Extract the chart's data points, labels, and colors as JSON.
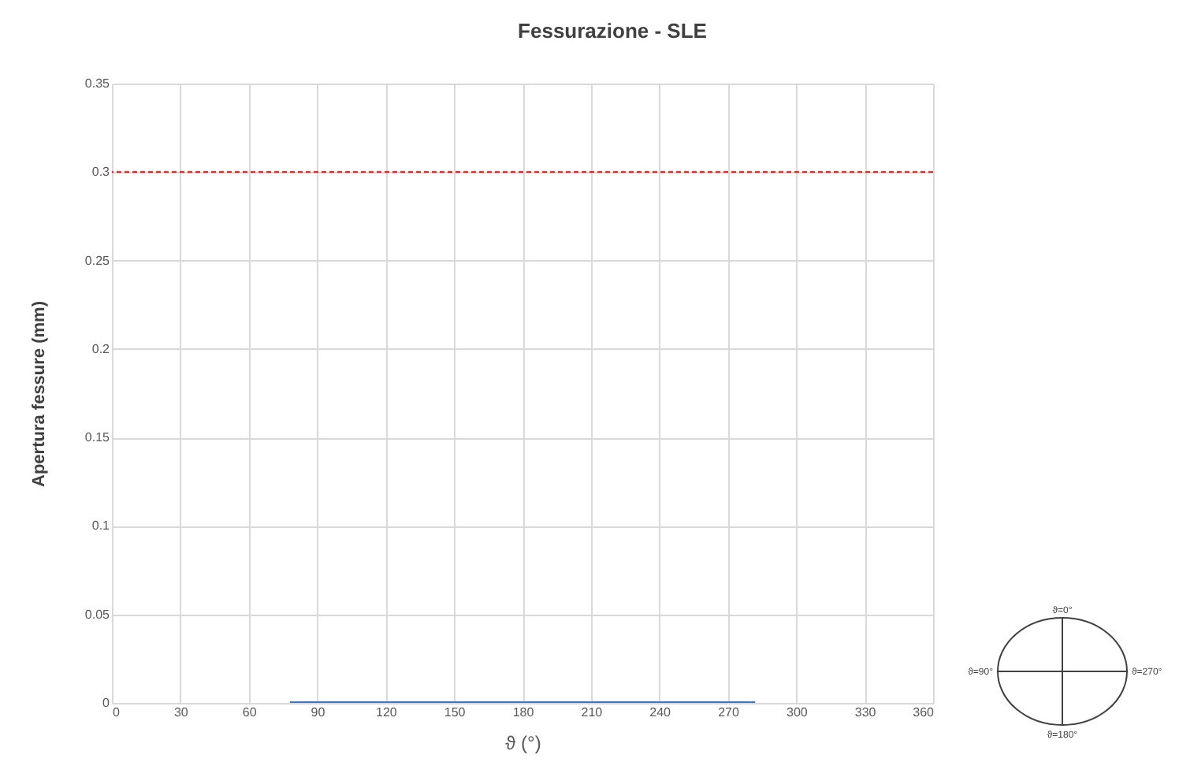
{
  "chart_data": {
    "type": "line",
    "title": "Fessurazione - SLE",
    "xlabel": "ϑ (°)",
    "ylabel": "Apertura fessure (mm)",
    "x": [
      78,
      282
    ],
    "series": [
      {
        "color": "#4472c4",
        "values": [
          0,
          0
        ]
      }
    ],
    "xlim": [
      0,
      360
    ],
    "xticks": [
      0,
      30,
      60,
      90,
      120,
      150,
      180,
      210,
      240,
      270,
      300,
      330,
      360
    ],
    "ylim": [
      0,
      0.35
    ],
    "yticks": [
      0,
      0.05,
      0.1,
      0.15,
      0.2,
      0.25,
      0.3,
      0.35
    ],
    "grid": true,
    "ref_lines": [
      {
        "axis": "y",
        "value": 0.3,
        "color": "#ff0000",
        "line_style": "dashed"
      }
    ],
    "annotations": [
      "ϑ=0°",
      "ϑ=90°",
      "ϑ=180°",
      "ϑ=270°"
    ]
  }
}
